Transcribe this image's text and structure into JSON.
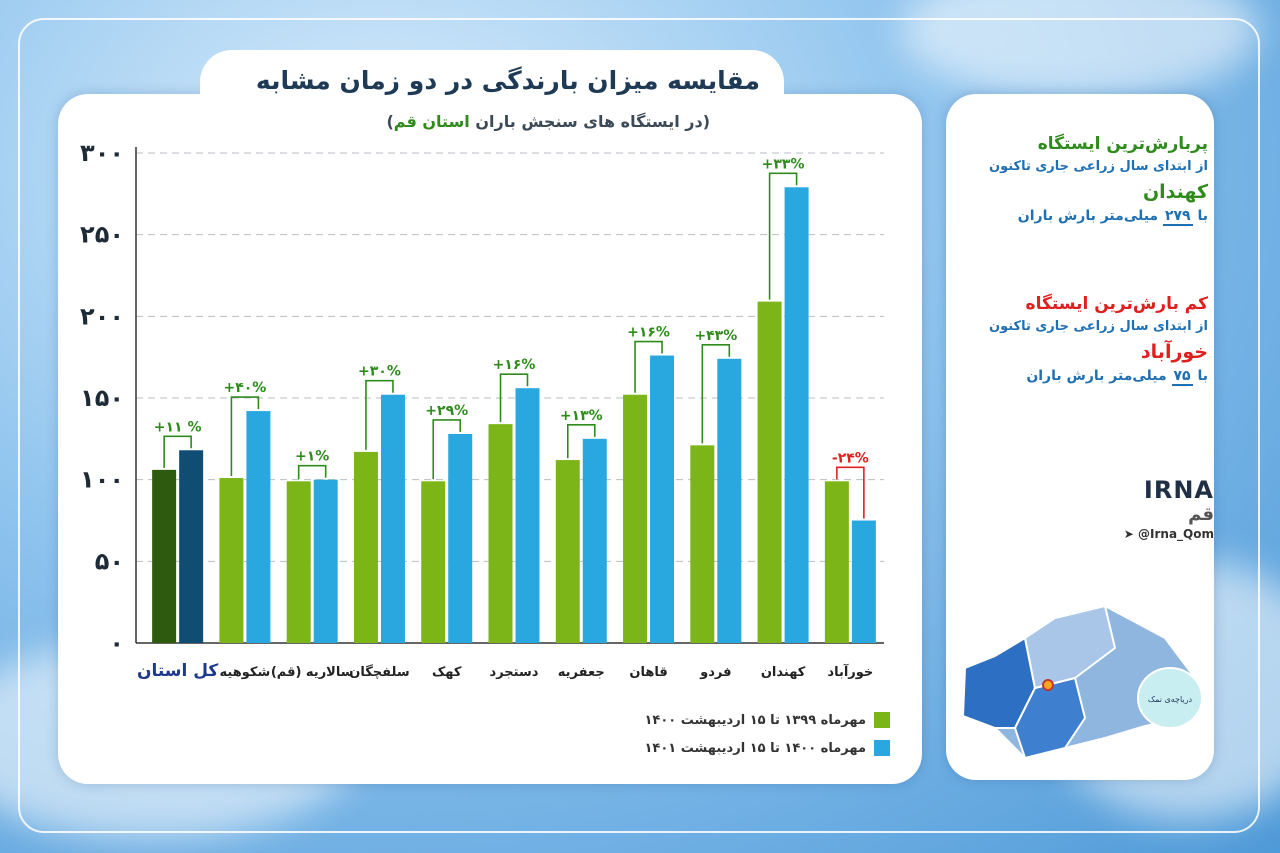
{
  "header": {
    "title": "مقایسه میزان بارندگی در دو زمان مشابه",
    "subtitle_prefix": "(در ایستگاه های سنجش باران",
    "subtitle_highlight": "استان قم",
    "subtitle_suffix": ")"
  },
  "chart_data": {
    "type": "bar",
    "categories": [
      "کل استان",
      "شکوهیه",
      "سالاریه (قم)",
      "سلفچگان",
      "کهک",
      "دستجرد",
      "جعفریه",
      "قاهان",
      "فردو",
      "کهندان",
      "خورآباد"
    ],
    "series": [
      {
        "name": "مهرماه ۱۳۹۹ تا ۱۵ اردیبهشت ۱۴۰۰",
        "values": [
          106,
          101,
          99,
          117,
          99,
          134,
          112,
          152,
          121,
          209,
          99
        ],
        "color": "#7cb518"
      },
      {
        "name": "مهرماه ۱۴۰۰ تا ۱۵ اردیبهشت ۱۴۰۱",
        "values": [
          118,
          142,
          100,
          152,
          128,
          156,
          125,
          176,
          174,
          279,
          75
        ],
        "color": "#29a8e0"
      }
    ],
    "total_colors": {
      "first": "#2e5a0f",
      "second": "#0f4d72"
    },
    "change_labels": [
      "+۱۱ %",
      "+۴۰%",
      "+۱%",
      "+۳۰%",
      "+۲۹%",
      "+۱۶%",
      "+۱۳%",
      "+۱۶%",
      "+۴۳%",
      "+۳۳%",
      "-۲۴%"
    ],
    "y_ticks": [
      "۰",
      "۵۰",
      "۱۰۰",
      "۱۵۰",
      "۲۰۰",
      "۲۵۰",
      "۳۰۰"
    ],
    "ylim": [
      0,
      300
    ],
    "grid": true,
    "legend_position": "bottom-right"
  },
  "side": {
    "max_head": "پربارش‌ترین ایستگاه",
    "max_sub": "از ابتدای سال زراعی جاری تاکنون",
    "max_station": "کهندان",
    "max_prefix": "با",
    "max_value": "۲۷۹",
    "max_suffix": "میلی‌متر بارش باران",
    "min_head": "کم بارش‌ترین ایستگاه",
    "min_sub": "از ابتدای سال زراعی جاری تاکنون",
    "min_station": "خورآباد",
    "min_prefix": "با",
    "min_value": "۷۵",
    "min_suffix": "میلی‌متر بارش باران"
  },
  "brand": {
    "logo": "IRNA",
    "city": "قم",
    "handle": "@Irna_Qom",
    "map_label": "دریاچه‌ی نمک"
  },
  "colors": {
    "green": "#2f8b1c",
    "red": "#e0201f",
    "blue": "#1f6fb3"
  }
}
